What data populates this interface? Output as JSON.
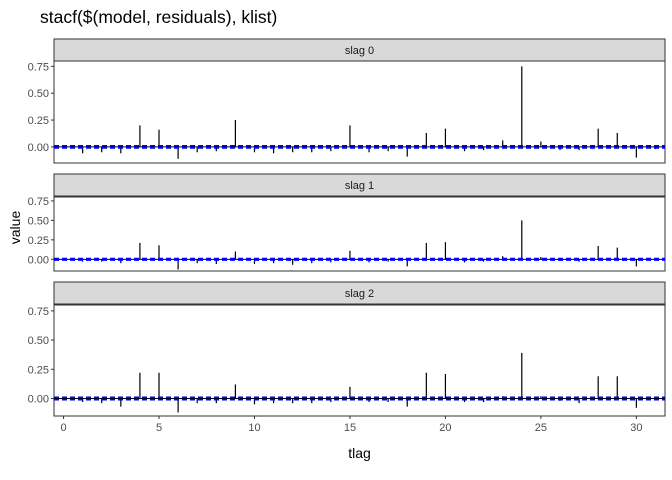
{
  "title": "stacf($(model, residuals), klist)",
  "chart_data": {
    "type": "line",
    "xlabel": "tlag",
    "ylabel": "value",
    "xlim": [
      -0.5,
      31.5
    ],
    "ylim": [
      -0.15,
      0.8
    ],
    "x_ticks": [
      0,
      5,
      10,
      15,
      20,
      25,
      30
    ],
    "y_ticks": [
      0.0,
      0.25,
      0.5,
      0.75
    ],
    "y_tick_labels": [
      "0.00",
      "0.25",
      "0.50",
      "0.75"
    ],
    "reference_lines": {
      "color": "#0000ff",
      "style": "dashed",
      "values": [
        -0.01,
        0.01
      ]
    },
    "panels": [
      {
        "label": "slag 0",
        "x": [
          1,
          2,
          3,
          4,
          5,
          6,
          7,
          8,
          9,
          10,
          11,
          12,
          13,
          14,
          15,
          16,
          17,
          18,
          19,
          20,
          21,
          22,
          23,
          24,
          25,
          26,
          27,
          28,
          29,
          30,
          31
        ],
        "values": [
          -0.06,
          -0.05,
          -0.06,
          0.2,
          0.16,
          -0.11,
          -0.05,
          -0.04,
          0.25,
          -0.05,
          -0.06,
          -0.05,
          -0.05,
          -0.04,
          0.2,
          -0.05,
          -0.04,
          -0.09,
          0.13,
          0.17,
          -0.04,
          -0.03,
          0.06,
          0.75,
          0.05,
          -0.03,
          -0.03,
          0.17,
          0.13,
          -0.1,
          -0.02
        ]
      },
      {
        "label": "slag 1",
        "x": [
          1,
          2,
          3,
          4,
          5,
          6,
          7,
          8,
          9,
          10,
          11,
          12,
          13,
          14,
          15,
          16,
          17,
          18,
          19,
          20,
          21,
          22,
          23,
          24,
          25,
          26,
          27,
          28,
          29,
          30,
          31
        ],
        "values": [
          -0.03,
          -0.03,
          -0.05,
          0.21,
          0.18,
          -0.13,
          -0.05,
          -0.06,
          0.1,
          -0.06,
          -0.05,
          -0.07,
          -0.05,
          -0.04,
          0.11,
          -0.04,
          -0.03,
          -0.09,
          0.21,
          0.22,
          -0.04,
          -0.03,
          0.04,
          0.5,
          0.03,
          -0.02,
          -0.03,
          0.17,
          0.15,
          -0.09,
          -0.01
        ]
      },
      {
        "label": "slag 2",
        "x": [
          1,
          2,
          3,
          4,
          5,
          6,
          7,
          8,
          9,
          10,
          11,
          12,
          13,
          14,
          15,
          16,
          17,
          18,
          19,
          20,
          21,
          22,
          23,
          24,
          25,
          26,
          27,
          28,
          29,
          30,
          31
        ],
        "values": [
          -0.03,
          -0.04,
          -0.07,
          0.22,
          0.22,
          -0.12,
          -0.04,
          -0.04,
          0.12,
          -0.05,
          -0.04,
          -0.04,
          -0.04,
          -0.03,
          0.1,
          -0.03,
          -0.03,
          -0.07,
          0.22,
          0.21,
          -0.03,
          -0.03,
          0.02,
          0.39,
          0.02,
          -0.02,
          -0.04,
          0.19,
          0.19,
          -0.08,
          -0.01
        ]
      }
    ]
  }
}
